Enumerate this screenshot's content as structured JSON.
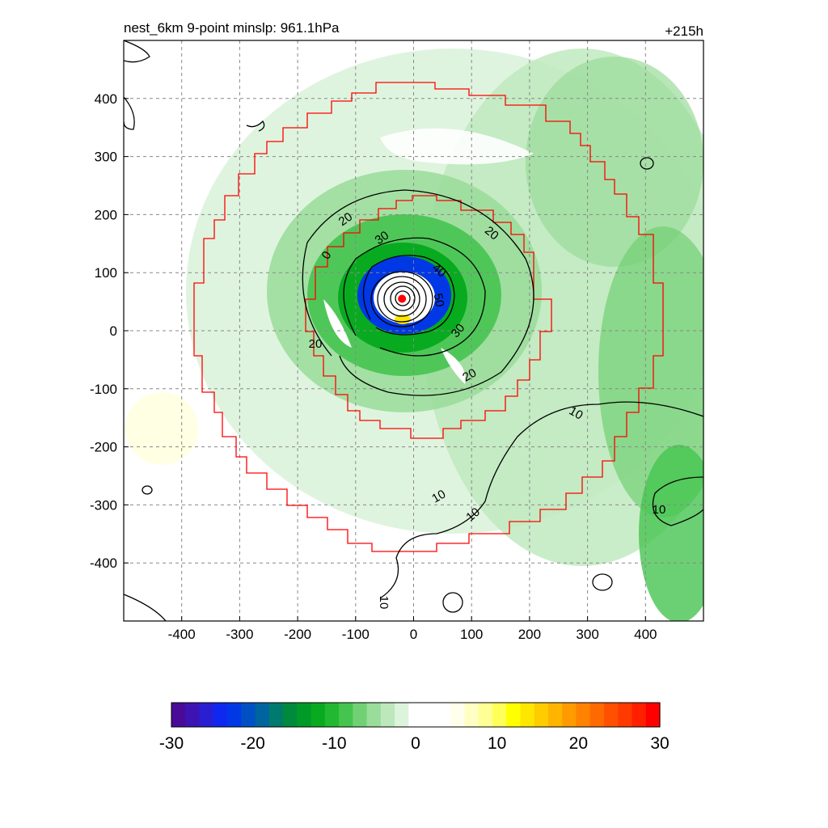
{
  "title_left": "nest_6km  9-point minslp: 961.1hPa",
  "title_right": "+215h",
  "chart_data": {
    "type": "heatmap",
    "title": "nest_6km  9-point minslp: 961.1hPa",
    "lead_time": "+215h",
    "xlim": [
      -500,
      500
    ],
    "ylim": [
      -500,
      500
    ],
    "x_ticks": [
      -400,
      -300,
      -200,
      -100,
      0,
      100,
      200,
      300,
      400
    ],
    "y_ticks": [
      400,
      300,
      200,
      100,
      0,
      -100,
      -200,
      -300,
      -400
    ],
    "grid": "dashed",
    "colorbar": {
      "range": [
        -30,
        30
      ],
      "ticks": [
        -30,
        -20,
        -10,
        0,
        10,
        20,
        30
      ],
      "colors": [
        "#4a0a98",
        "#3c14b4",
        "#2a1ed2",
        "#0f28f0",
        "#0038e6",
        "#0050c4",
        "#0064a0",
        "#007a6e",
        "#008a3c",
        "#009a28",
        "#08aa20",
        "#22b832",
        "#46c450",
        "#72d074",
        "#9adc9a",
        "#bde8bc",
        "#dcf3dc",
        "#ffffff",
        "#ffffff",
        "#ffffff",
        "#ffffec",
        "#ffffc4",
        "#ffff96",
        "#ffff5a",
        "#ffff00",
        "#ffe600",
        "#ffcc00",
        "#ffb400",
        "#ff9a00",
        "#ff8200",
        "#ff6a00",
        "#ff5000",
        "#ff3a00",
        "#ff2000",
        "#ff0000"
      ]
    },
    "contour_labels": [
      "20",
      "20",
      "20",
      "20",
      "30",
      "30",
      "40",
      "50",
      "0",
      "10",
      "10",
      "10",
      "10",
      "10"
    ],
    "center_marker": {
      "x": -20,
      "y": 55,
      "color": "#ff0000"
    },
    "series": []
  }
}
